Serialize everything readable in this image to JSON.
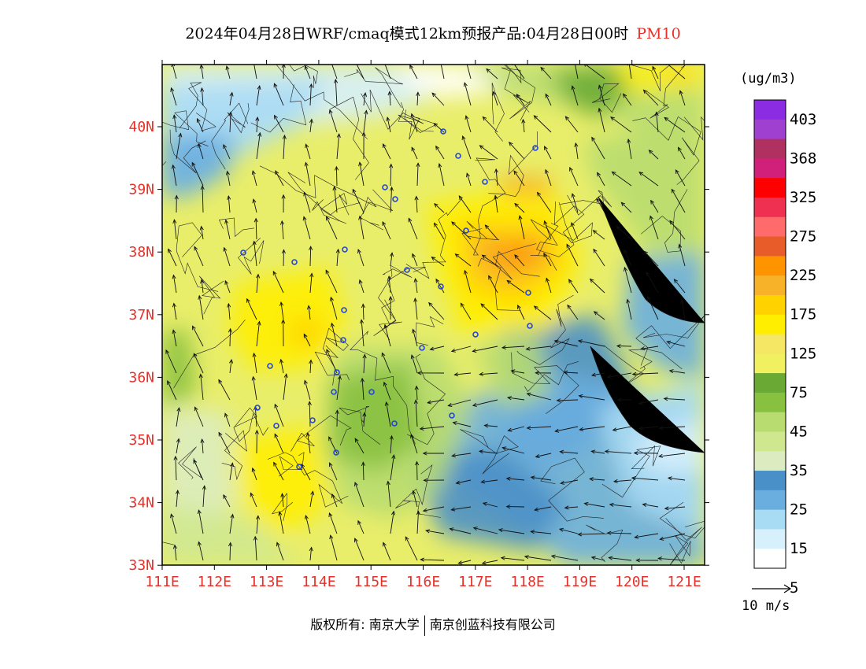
{
  "title": {
    "main": "2024年04月28日WRF/cmaq模式12km预报产品:04月28日00时",
    "pollutant": "PM10"
  },
  "lat_labels": [
    "40N",
    "39N",
    "38N",
    "37N",
    "36N",
    "35N",
    "34N",
    "33N"
  ],
  "lon_labels": [
    "111E",
    "112E",
    "113E",
    "114E",
    "115E",
    "116E",
    "117E",
    "118E",
    "119E",
    "120E",
    "121E"
  ],
  "colorbar": {
    "units": "(ug/m3)",
    "labels": [
      "403",
      "368",
      "325",
      "275",
      "225",
      "175",
      "125",
      "75",
      "45",
      "35",
      "25",
      "15",
      "5"
    ],
    "colors": [
      "#8b2be2",
      "#a040d0",
      "#b03060",
      "#d0207a",
      "#ff0000",
      "#f03050",
      "#ff6a6a",
      "#e85c2a",
      "#ff9400",
      "#f7b22a",
      "#ffd200",
      "#ffee00",
      "#f5e663",
      "#f0f060",
      "#6aaa34",
      "#88c040",
      "#b8dc70",
      "#cfe890",
      "#dcecc0",
      "#4a90c8",
      "#6aaee0",
      "#a8dcf4",
      "#d6f0fc",
      "#ffffff"
    ]
  },
  "wind_scale_label": "10 m/s",
  "footer": {
    "copyright": "版权所有: 南京大学",
    "company": "南京创蓝科技有限公司"
  },
  "palette": {
    "label_red": "#e8302a",
    "city_blue": "#2244dd"
  }
}
